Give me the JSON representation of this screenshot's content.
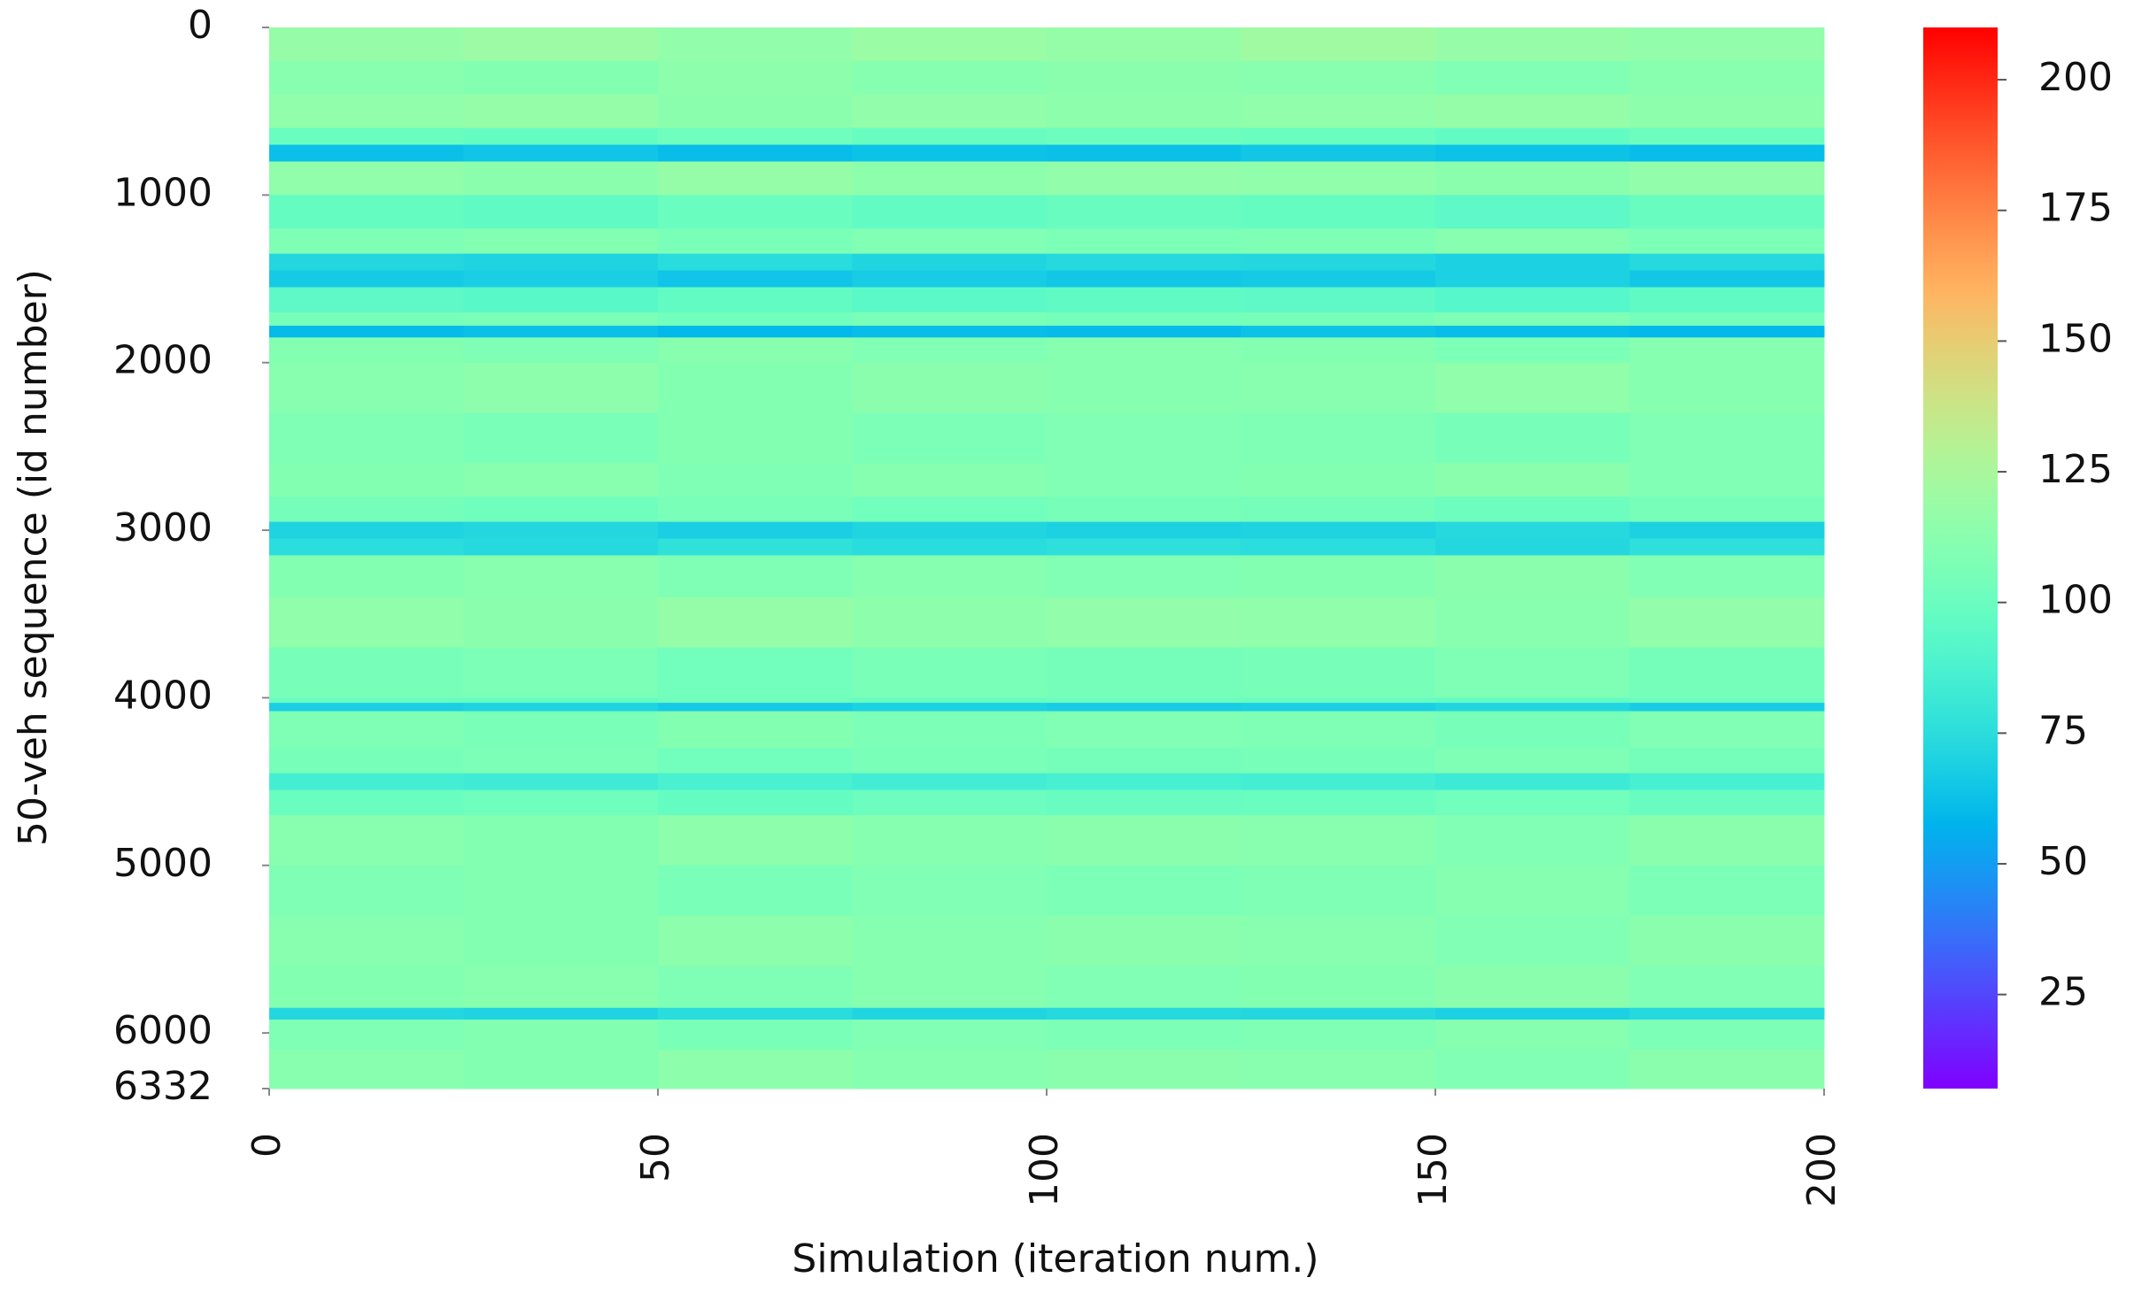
{
  "chart_data": {
    "type": "heatmap",
    "x_label": "Simulation (iteration num.)",
    "y_label": "50-veh sequence (id number)",
    "x_bins": [
      0,
      25,
      50,
      75,
      100,
      125,
      150,
      175,
      200
    ],
    "y_bins": [
      0,
      200,
      400,
      600,
      700,
      800,
      1000,
      1200,
      1350,
      1450,
      1550,
      1700,
      1780,
      1850,
      2000,
      2300,
      2600,
      2800,
      2950,
      3050,
      3150,
      3400,
      3700,
      4000,
      4030,
      4080,
      4300,
      4450,
      4550,
      4700,
      5000,
      5300,
      5600,
      5850,
      5920,
      6100,
      6332
    ],
    "values": [
      [
        118,
        120,
        116,
        119,
        117,
        121,
        118,
        116
      ],
      [
        112,
        110,
        114,
        111,
        113,
        112,
        109,
        112
      ],
      [
        115,
        117,
        113,
        116,
        114,
        115,
        117,
        114
      ],
      [
        100,
        98,
        102,
        99,
        101,
        100,
        97,
        101
      ],
      [
        62,
        64,
        61,
        63,
        62,
        65,
        63,
        61
      ],
      [
        115,
        113,
        117,
        114,
        116,
        115,
        113,
        116
      ],
      [
        98,
        96,
        100,
        97,
        99,
        98,
        95,
        99
      ],
      [
        108,
        110,
        106,
        109,
        107,
        108,
        111,
        107
      ],
      [
        72,
        70,
        74,
        71,
        73,
        72,
        69,
        73
      ],
      [
        66,
        68,
        64,
        67,
        65,
        66,
        69,
        65
      ],
      [
        95,
        93,
        97,
        94,
        96,
        95,
        92,
        96
      ],
      [
        105,
        107,
        103,
        106,
        104,
        105,
        108,
        104
      ],
      [
        60,
        62,
        59,
        61,
        60,
        63,
        61,
        59
      ],
      [
        110,
        108,
        112,
        109,
        111,
        110,
        107,
        111
      ],
      [
        112,
        114,
        110,
        113,
        111,
        112,
        115,
        111
      ],
      [
        108,
        106,
        110,
        107,
        109,
        108,
        105,
        109
      ],
      [
        110,
        112,
        108,
        111,
        109,
        110,
        113,
        109
      ],
      [
        104,
        102,
        106,
        103,
        105,
        104,
        101,
        105
      ],
      [
        70,
        72,
        68,
        71,
        69,
        70,
        73,
        69
      ],
      [
        75,
        73,
        77,
        74,
        76,
        75,
        72,
        76
      ],
      [
        110,
        112,
        108,
        111,
        109,
        110,
        113,
        109
      ],
      [
        115,
        113,
        117,
        114,
        116,
        115,
        112,
        116
      ],
      [
        105,
        107,
        103,
        106,
        104,
        105,
        108,
        104
      ],
      [
        100,
        98,
        102,
        99,
        101,
        100,
        97,
        101
      ],
      [
        68,
        70,
        66,
        69,
        67,
        68,
        71,
        67
      ],
      [
        108,
        106,
        110,
        107,
        109,
        108,
        105,
        109
      ],
      [
        105,
        107,
        103,
        106,
        104,
        105,
        108,
        104
      ],
      [
        85,
        83,
        87,
        84,
        86,
        85,
        82,
        86
      ],
      [
        100,
        102,
        98,
        101,
        99,
        100,
        103,
        99
      ],
      [
        112,
        110,
        114,
        111,
        113,
        112,
        109,
        113
      ],
      [
        108,
        110,
        106,
        109,
        107,
        108,
        111,
        107
      ],
      [
        112,
        110,
        114,
        111,
        113,
        112,
        109,
        113
      ],
      [
        110,
        112,
        108,
        111,
        109,
        110,
        113,
        109
      ],
      [
        72,
        70,
        74,
        71,
        73,
        72,
        69,
        73
      ],
      [
        108,
        110,
        106,
        109,
        107,
        108,
        111,
        107
      ],
      [
        112,
        110,
        114,
        111,
        113,
        112,
        109,
        113
      ]
    ],
    "xlim": [
      0,
      200
    ],
    "xticks": [
      0,
      50,
      100,
      150,
      200
    ],
    "ylim": [
      0,
      6332
    ],
    "yticks": [
      0,
      1000,
      2000,
      3000,
      4000,
      5000,
      6000,
      6332
    ],
    "y_inverted": true,
    "colormap": "rainbow",
    "clim": [
      7,
      210
    ],
    "cticks": [
      25,
      50,
      75,
      100,
      125,
      150,
      175,
      200
    ]
  }
}
